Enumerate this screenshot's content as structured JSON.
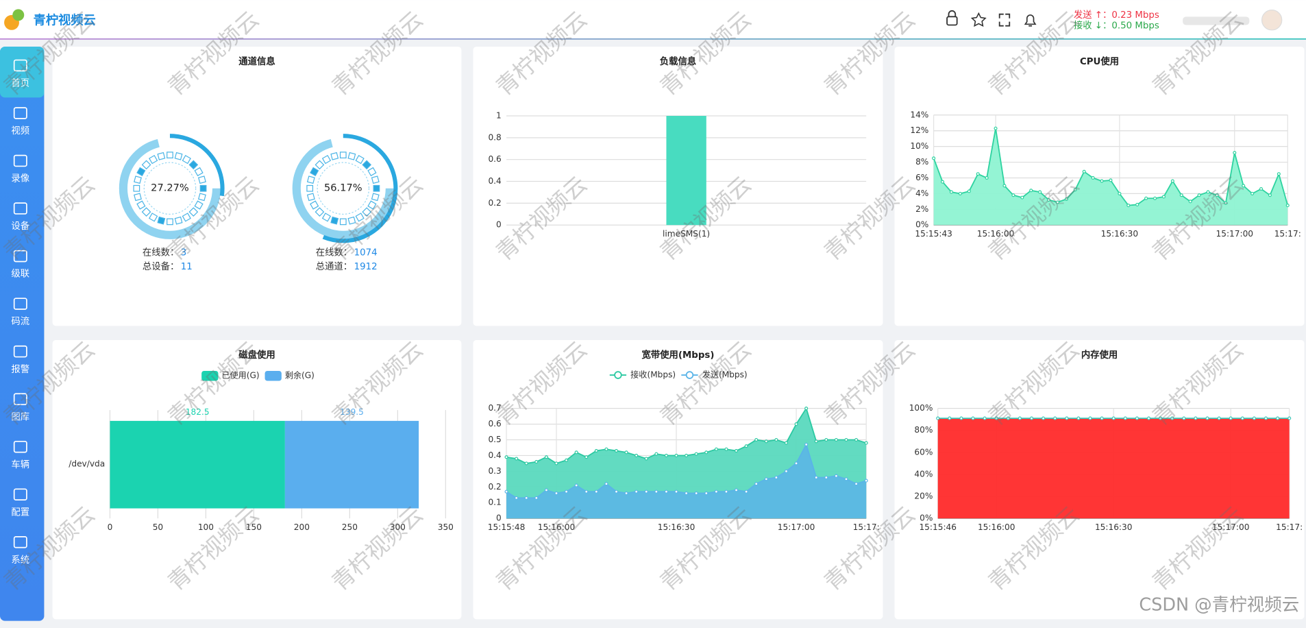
{
  "header": {
    "logo": "青柠视频云",
    "send": "发送 ↑：0.23 Mbps",
    "recv": "接收 ↓：0.50 Mbps"
  },
  "sidebar": [
    "首页",
    "视频",
    "录像",
    "设备",
    "级联",
    "码流",
    "报警",
    "图库",
    "车辆",
    "配置",
    "系统"
  ],
  "watermark": "青柠视频云",
  "footer": "CSDN @青柠视频云",
  "chart_data": [
    {
      "type": "gauge",
      "title": "通道信息",
      "values": [
        27.27,
        56.17
      ],
      "value_labels": [
        "27.27%",
        "56.17%"
      ],
      "color": "#2aa8e0",
      "details": [
        [
          {
            "label": "在线数：",
            "value": 3
          },
          {
            "label": "总设备：",
            "value": 11
          }
        ],
        [
          {
            "label": "在线数：",
            "value": 1074
          },
          {
            "label": "总通道：",
            "value": 1912
          }
        ]
      ]
    },
    {
      "type": "bar",
      "title": "负载信息",
      "categories": [
        "limeSMS(1)"
      ],
      "values": [
        1
      ],
      "color": "#48dcc0",
      "ylim": [
        0,
        1
      ],
      "yticks": [
        0,
        0.2,
        0.4,
        0.6,
        0.8,
        1
      ],
      "grid": true
    },
    {
      "type": "line",
      "title": "CPU使用",
      "area": true,
      "grid": true,
      "categories": [
        {
          "v": "15:15:43"
        },
        null,
        null,
        null,
        null,
        null,
        null,
        "15:16:00",
        null,
        null,
        null,
        null,
        null,
        null,
        null,
        null,
        null,
        null,
        null,
        null,
        null,
        "15:16:30",
        null,
        null,
        null,
        null,
        null,
        null,
        null,
        null,
        null,
        null,
        null,
        null,
        "15:17:00",
        null,
        null,
        null,
        null,
        null,
        "15:17:"
      ],
      "series": [
        {
          "color": "#2ed3a0",
          "fill": "#8ef3d2",
          "values": [
            8.5,
            5.5,
            4.2,
            4,
            4.3,
            6.5,
            6,
            12.3,
            5,
            3.8,
            3.5,
            4.4,
            4.2,
            3.2,
            2.9,
            3.3,
            4.5,
            6.8,
            6,
            5.6,
            5.7,
            4,
            2.5,
            2.6,
            3.4,
            3.4,
            3.6,
            5.6,
            3.8,
            3,
            3.8,
            4.2,
            3.8,
            2.8,
            9.2,
            5,
            4,
            4.6,
            3.8,
            6.5,
            2.5
          ]
        }
      ],
      "ylim": [
        0,
        14
      ],
      "yticks": [
        {
          "value": 0,
          "label": "0%"
        },
        {
          "value": 2,
          "label": "2%"
        },
        {
          "value": 4,
          "label": "4%"
        },
        {
          "value": 6,
          "label": "6%"
        },
        {
          "value": 8,
          "label": "8%"
        },
        {
          "value": 10,
          "label": "10%"
        },
        {
          "value": 12,
          "label": "12%"
        },
        {
          "value": 14,
          "label": "14%"
        }
      ]
    },
    {
      "type": "hbar",
      "title": "磁盘使用",
      "stacked": true,
      "legend": "top",
      "grid": true,
      "categories": [
        "/dev/vda"
      ],
      "series": [
        {
          "name": "已使用(G)",
          "color": "#1bd3b0",
          "values": [
            182.5
          ]
        },
        {
          "name": "剩余(G)",
          "color": "#5aaeee",
          "values": [
            139.5
          ]
        }
      ],
      "xlim": [
        0,
        350
      ],
      "xticks": [
        0,
        50,
        100,
        150,
        200,
        250,
        300,
        350
      ]
    },
    {
      "type": "line",
      "title": "宽带使用(Mbps)",
      "area": true,
      "grid": true,
      "legend": "top",
      "categories": [
        "15:15:48",
        null,
        null,
        null,
        null,
        "15:16:00",
        null,
        null,
        null,
        null,
        null,
        null,
        null,
        null,
        null,
        null,
        null,
        "15:16:30",
        null,
        null,
        null,
        null,
        null,
        null,
        null,
        null,
        null,
        null,
        null,
        "15:17:00",
        null,
        null,
        null,
        null,
        null,
        null,
        "15:17:"
      ],
      "series": [
        {
          "name": "接收(Mbps)",
          "color": "#2cc9a2",
          "fill": "#5ad9be",
          "values": [
            0.39,
            0.38,
            0.35,
            0.36,
            0.39,
            0.35,
            0.37,
            0.42,
            0.39,
            0.43,
            0.44,
            0.43,
            0.42,
            0.4,
            0.38,
            0.41,
            0.4,
            0.4,
            0.4,
            0.41,
            0.42,
            0.44,
            0.44,
            0.43,
            0.46,
            0.5,
            0.49,
            0.5,
            0.48,
            0.6,
            0.7,
            0.49,
            0.5,
            0.5,
            0.5,
            0.5,
            0.48
          ]
        },
        {
          "name": "发送(Mbps)",
          "color": "#5ab4e8",
          "fill": "#5cb8e4",
          "values": [
            0.17,
            0.13,
            0.13,
            0.13,
            0.18,
            0.16,
            0.17,
            0.21,
            0.17,
            0.17,
            0.22,
            0.17,
            0.16,
            0.17,
            0.17,
            0.17,
            0.17,
            0.17,
            0.16,
            0.16,
            0.16,
            0.17,
            0.17,
            0.18,
            0.17,
            0.22,
            0.25,
            0.26,
            0.3,
            0.35,
            0.47,
            0.26,
            0.26,
            0.27,
            0.25,
            0.22,
            0.24
          ]
        }
      ],
      "ylim": [
        0,
        0.7
      ],
      "yticks": [
        0,
        0.1,
        0.2,
        0.3,
        0.4,
        0.5,
        0.6,
        0.7
      ]
    },
    {
      "type": "line",
      "title": "内存使用",
      "area": true,
      "grid": true,
      "categories": [
        "15:15:46",
        null,
        null,
        null,
        null,
        "15:16:00",
        null,
        null,
        null,
        null,
        null,
        null,
        null,
        null,
        null,
        "15:16:30",
        null,
        null,
        null,
        null,
        null,
        null,
        null,
        null,
        null,
        "15:17:00",
        null,
        null,
        null,
        null,
        "15:17:"
      ],
      "series": [
        {
          "color": "#3ec6b8",
          "fill": "#ff2a2a",
          "values": [
            91,
            91,
            91,
            91,
            91,
            91,
            91,
            91,
            91,
            91,
            91,
            91,
            91,
            91,
            91,
            91,
            91,
            91,
            91,
            91,
            91,
            91,
            91,
            91,
            91,
            91,
            91,
            91,
            91,
            91,
            91
          ]
        }
      ],
      "ylim": [
        0,
        100
      ],
      "yticks": [
        {
          "value": 0,
          "label": "0%"
        },
        {
          "value": 20,
          "label": "20%"
        },
        {
          "value": 40,
          "label": "40%"
        },
        {
          "value": 60,
          "label": "60%"
        },
        {
          "value": 80,
          "label": "80%"
        },
        {
          "value": 100,
          "label": "100%"
        }
      ]
    }
  ]
}
